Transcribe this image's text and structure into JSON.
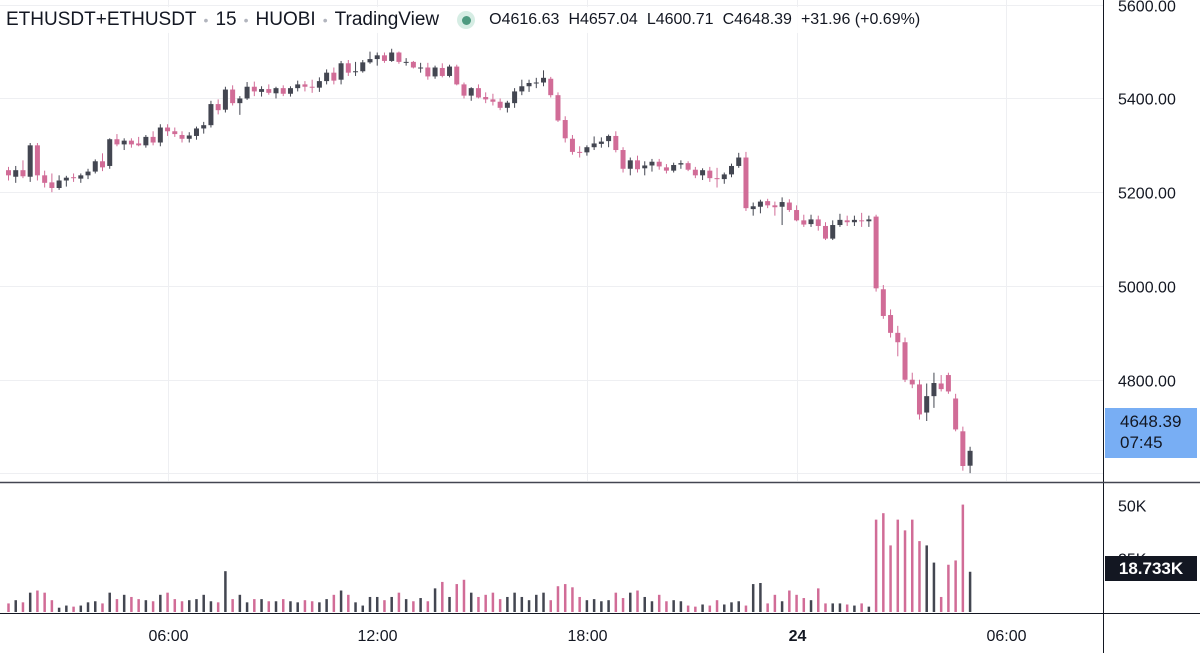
{
  "legend": {
    "symbol": "ETHUSDT+ETHUSDT",
    "interval": "15",
    "exchange": "HUOBI",
    "provider": "TradingView",
    "open": "O4616.63",
    "high": "H4657.04",
    "low": "L4600.71",
    "close": "C4648.39",
    "change": "+31.96 (+0.69%)"
  },
  "price_tag": {
    "price": "4648.39",
    "countdown": "07:45"
  },
  "volume_tag": {
    "value": "18.733K"
  },
  "colors": {
    "up": "#434651",
    "down": "#d16c97",
    "grid": "#eeeff2",
    "axis_text": "#131722",
    "price_tag": "#78aef4"
  },
  "chart_data": {
    "type": "candlestick",
    "price_axis": {
      "ticks": [
        5600,
        5400,
        5200,
        5000,
        4800
      ],
      "tick_labels": [
        "5600.00",
        "5400.00",
        "5200.00",
        "5000.00",
        "4800.00"
      ],
      "range": [
        4584,
        5610
      ]
    },
    "volume_axis": {
      "ticks": [
        50000,
        25000
      ],
      "tick_labels": [
        "50K",
        "25K"
      ],
      "range": [
        0,
        54000
      ]
    },
    "time_axis": {
      "tick_labels": [
        "06:00",
        "12:00",
        "18:00",
        "24",
        "06:00"
      ]
    },
    "candles": [
      [
        5247,
        5254,
        5225,
        5236,
        4000
      ],
      [
        5233,
        5256,
        5220,
        5247,
        5500
      ],
      [
        5247,
        5268,
        5230,
        5234,
        4500
      ],
      [
        5233,
        5305,
        5222,
        5300,
        9000
      ],
      [
        5300,
        5305,
        5225,
        5236,
        10000
      ],
      [
        5236,
        5246,
        5210,
        5220,
        9000
      ],
      [
        5221,
        5240,
        5200,
        5209,
        5500
      ],
      [
        5209,
        5236,
        5205,
        5225,
        2000
      ],
      [
        5225,
        5235,
        5212,
        5231,
        3000
      ],
      [
        5232,
        5240,
        5222,
        5230,
        2500
      ],
      [
        5229,
        5240,
        5220,
        5236,
        3000
      ],
      [
        5236,
        5250,
        5228,
        5244,
        4500
      ],
      [
        5244,
        5270,
        5240,
        5266,
        5000
      ],
      [
        5266,
        5283,
        5245,
        5253,
        4000
      ],
      [
        5256,
        5315,
        5250,
        5313,
        9000
      ],
      [
        5313,
        5324,
        5298,
        5302,
        6000
      ],
      [
        5302,
        5315,
        5290,
        5310,
        8000
      ],
      [
        5310,
        5315,
        5295,
        5302,
        7000
      ],
      [
        5304,
        5318,
        5298,
        5300,
        6000
      ],
      [
        5300,
        5322,
        5295,
        5318,
        5500
      ],
      [
        5318,
        5330,
        5300,
        5306,
        5000
      ],
      [
        5306,
        5345,
        5298,
        5338,
        8000
      ],
      [
        5338,
        5345,
        5320,
        5330,
        9000
      ],
      [
        5330,
        5338,
        5318,
        5324,
        6000
      ],
      [
        5322,
        5330,
        5306,
        5314,
        5000
      ],
      [
        5314,
        5328,
        5306,
        5321,
        5500
      ],
      [
        5320,
        5340,
        5312,
        5336,
        6000
      ],
      [
        5336,
        5350,
        5325,
        5343,
        8000
      ],
      [
        5343,
        5395,
        5338,
        5388,
        5000
      ],
      [
        5388,
        5398,
        5366,
        5375,
        4500
      ],
      [
        5376,
        5425,
        5370,
        5419,
        19000
      ],
      [
        5419,
        5428,
        5385,
        5390,
        6000
      ],
      [
        5390,
        5405,
        5365,
        5400,
        8000
      ],
      [
        5400,
        5435,
        5397,
        5425,
        4500
      ],
      [
        5425,
        5436,
        5405,
        5415,
        6000
      ],
      [
        5414,
        5426,
        5404,
        5420,
        6000
      ],
      [
        5420,
        5430,
        5408,
        5412,
        5000
      ],
      [
        5411,
        5425,
        5400,
        5422,
        5000
      ],
      [
        5422,
        5428,
        5405,
        5410,
        6000
      ],
      [
        5410,
        5426,
        5404,
        5422,
        5000
      ],
      [
        5422,
        5438,
        5415,
        5430,
        4500
      ],
      [
        5430,
        5437,
        5415,
        5425,
        5500
      ],
      [
        5425,
        5440,
        5412,
        5423,
        5000
      ],
      [
        5423,
        5445,
        5414,
        5437,
        4500
      ],
      [
        5437,
        5462,
        5430,
        5455,
        6000
      ],
      [
        5455,
        5466,
        5430,
        5438,
        8000
      ],
      [
        5440,
        5480,
        5430,
        5475,
        10000
      ],
      [
        5475,
        5482,
        5448,
        5455,
        8000
      ],
      [
        5456,
        5478,
        5448,
        5458,
        4500
      ],
      [
        5458,
        5482,
        5455,
        5477,
        3000
      ],
      [
        5477,
        5500,
        5474,
        5484,
        7000
      ],
      [
        5484,
        5498,
        5470,
        5492,
        7000
      ],
      [
        5492,
        5498,
        5476,
        5480,
        5500
      ],
      [
        5480,
        5506,
        5478,
        5498,
        7000
      ],
      [
        5498,
        5500,
        5474,
        5478,
        9000
      ],
      [
        5478,
        5486,
        5470,
        5478,
        6000
      ],
      [
        5478,
        5480,
        5464,
        5466,
        5000
      ],
      [
        5466,
        5476,
        5455,
        5466,
        6500
      ],
      [
        5466,
        5476,
        5440,
        5447,
        5000
      ],
      [
        5447,
        5470,
        5442,
        5466,
        11000
      ],
      [
        5465,
        5475,
        5445,
        5448,
        14000
      ],
      [
        5448,
        5472,
        5445,
        5468,
        7000
      ],
      [
        5468,
        5472,
        5428,
        5430,
        13000
      ],
      [
        5430,
        5434,
        5400,
        5406,
        15000
      ],
      [
        5406,
        5424,
        5395,
        5422,
        9000
      ],
      [
        5422,
        5430,
        5400,
        5402,
        7000
      ],
      [
        5403,
        5413,
        5390,
        5398,
        8000
      ],
      [
        5398,
        5410,
        5385,
        5393,
        9000
      ],
      [
        5393,
        5400,
        5375,
        5380,
        6000
      ],
      [
        5380,
        5395,
        5370,
        5391,
        7000
      ],
      [
        5390,
        5422,
        5380,
        5415,
        9000
      ],
      [
        5415,
        5440,
        5407,
        5426,
        7000
      ],
      [
        5426,
        5440,
        5414,
        5433,
        5500
      ],
      [
        5433,
        5444,
        5422,
        5434,
        8000
      ],
      [
        5434,
        5460,
        5426,
        5444,
        9000
      ],
      [
        5442,
        5446,
        5402,
        5407,
        5500
      ],
      [
        5407,
        5413,
        5350,
        5353,
        12000
      ],
      [
        5354,
        5362,
        5306,
        5315,
        13000
      ],
      [
        5314,
        5322,
        5280,
        5286,
        11500
      ],
      [
        5286,
        5298,
        5274,
        5284,
        7000
      ],
      [
        5285,
        5300,
        5278,
        5296,
        5500
      ],
      [
        5296,
        5319,
        5290,
        5304,
        6000
      ],
      [
        5303,
        5317,
        5295,
        5308,
        5000
      ],
      [
        5309,
        5323,
        5296,
        5320,
        5500
      ],
      [
        5320,
        5330,
        5285,
        5290,
        9000
      ],
      [
        5290,
        5296,
        5242,
        5250,
        6500
      ],
      [
        5250,
        5274,
        5236,
        5268,
        9000
      ],
      [
        5268,
        5278,
        5242,
        5249,
        10000
      ],
      [
        5251,
        5266,
        5236,
        5257,
        7000
      ],
      [
        5257,
        5271,
        5244,
        5265,
        5000
      ],
      [
        5265,
        5271,
        5248,
        5255,
        8000
      ],
      [
        5253,
        5260,
        5240,
        5246,
        5000
      ],
      [
        5246,
        5263,
        5242,
        5258,
        5500
      ],
      [
        5259,
        5268,
        5250,
        5262,
        5000
      ],
      [
        5262,
        5266,
        5245,
        5248,
        3000
      ],
      [
        5248,
        5254,
        5230,
        5236,
        2500
      ],
      [
        5236,
        5251,
        5226,
        5247,
        3500
      ],
      [
        5246,
        5254,
        5222,
        5230,
        3000
      ],
      [
        5230,
        5252,
        5210,
        5228,
        5500
      ],
      [
        5228,
        5242,
        5218,
        5238,
        3500
      ],
      [
        5238,
        5261,
        5232,
        5256,
        4500
      ],
      [
        5256,
        5284,
        5252,
        5274,
        5000
      ],
      [
        5274,
        5286,
        5160,
        5166,
        3000
      ],
      [
        5164,
        5178,
        5150,
        5170,
        13000
      ],
      [
        5169,
        5184,
        5155,
        5180,
        13500
      ],
      [
        5181,
        5186,
        5166,
        5172,
        4000
      ],
      [
        5172,
        5180,
        5150,
        5168,
        8000
      ],
      [
        5169,
        5189,
        5130,
        5179,
        5000
      ],
      [
        5178,
        5185,
        5158,
        5162,
        10000
      ],
      [
        5162,
        5172,
        5138,
        5140,
        8000
      ],
      [
        5140,
        5152,
        5126,
        5131,
        6500
      ],
      [
        5132,
        5152,
        5126,
        5142,
        5500
      ],
      [
        5142,
        5150,
        5118,
        5128,
        11000
      ],
      [
        5128,
        5136,
        5098,
        5101,
        4000
      ],
      [
        5101,
        5140,
        5098,
        5130,
        4000
      ],
      [
        5130,
        5154,
        5126,
        5141,
        4000
      ],
      [
        5140,
        5150,
        5128,
        5136,
        3500
      ],
      [
        5136,
        5150,
        5128,
        5141,
        3000
      ],
      [
        5140,
        5156,
        5126,
        5138,
        4000
      ],
      [
        5138,
        5150,
        5126,
        5142,
        2500
      ],
      [
        5148,
        5152,
        4988,
        4995,
        43000
      ],
      [
        4993,
        5002,
        4930,
        4936,
        46000
      ],
      [
        4938,
        4950,
        4890,
        4900,
        31000
      ],
      [
        4900,
        4915,
        4850,
        4880,
        43000
      ],
      [
        4880,
        4890,
        4795,
        4800,
        38000
      ],
      [
        4800,
        4815,
        4782,
        4790,
        43000
      ],
      [
        4790,
        4800,
        4715,
        4726,
        33000
      ],
      [
        4730,
        4792,
        4712,
        4765,
        31000
      ],
      [
        4765,
        4815,
        4740,
        4793,
        23000
      ],
      [
        4792,
        4810,
        4775,
        4780,
        7000
      ],
      [
        4810,
        4815,
        4770,
        4775,
        22000
      ],
      [
        4760,
        4770,
        4690,
        4694,
        24000
      ],
      [
        4690,
        4700,
        4606,
        4616,
        50000
      ],
      [
        4616.63,
        4657.04,
        4600.71,
        4648.39,
        18733
      ]
    ]
  }
}
